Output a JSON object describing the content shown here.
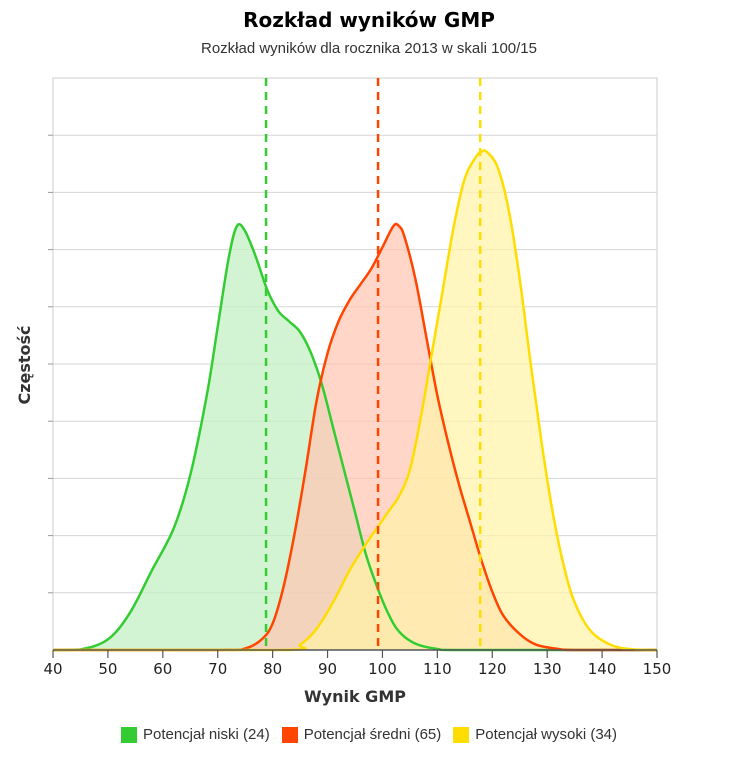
{
  "chart_data": {
    "type": "area",
    "title": "Rozkład wyników GMP",
    "subtitle": "Rozkład wyników dla rocznika 2013 w skali 100/15",
    "xlabel": "Wynik GMP",
    "ylabel": "Częstość",
    "xlim": [
      40,
      150
    ],
    "ylim": [
      0,
      1
    ],
    "x_ticks": [
      40,
      50,
      60,
      70,
      80,
      90,
      100,
      110,
      120,
      130,
      140,
      150
    ],
    "y_tick_labels_shown": false,
    "grid": true,
    "legend_placement": "bottom",
    "series": [
      {
        "name": "Potencjał niski (24)",
        "color": "#33cc33",
        "fill": "#c2f0c2",
        "mean": 78.8,
        "points": [
          [
            40,
            0
          ],
          [
            45,
            0.001
          ],
          [
            50,
            0.02
          ],
          [
            54,
            0.07
          ],
          [
            58,
            0.15
          ],
          [
            62,
            0.23
          ],
          [
            65,
            0.33
          ],
          [
            68,
            0.48
          ],
          [
            70,
            0.61
          ],
          [
            72,
            0.74
          ],
          [
            73.5,
            0.8
          ],
          [
            75,
            0.79
          ],
          [
            77,
            0.74
          ],
          [
            79,
            0.68
          ],
          [
            81,
            0.64
          ],
          [
            83,
            0.62
          ],
          [
            85,
            0.6
          ],
          [
            87,
            0.56
          ],
          [
            89,
            0.5
          ],
          [
            91,
            0.42
          ],
          [
            93,
            0.34
          ],
          [
            95,
            0.26
          ],
          [
            97,
            0.18
          ],
          [
            99,
            0.12
          ],
          [
            101,
            0.07
          ],
          [
            103,
            0.035
          ],
          [
            106,
            0.012
          ],
          [
            110,
            0.002
          ],
          [
            115,
            0
          ],
          [
            150,
            0
          ]
        ]
      },
      {
        "name": "Potencjał średni (65)",
        "color": "#ff4500",
        "fill": "#ffc6b3",
        "mean": 99.2,
        "points": [
          [
            40,
            0
          ],
          [
            70,
            0
          ],
          [
            75,
            0.003
          ],
          [
            78,
            0.02
          ],
          [
            80,
            0.05
          ],
          [
            82,
            0.12
          ],
          [
            84,
            0.22
          ],
          [
            86,
            0.34
          ],
          [
            88,
            0.47
          ],
          [
            90,
            0.56
          ],
          [
            92,
            0.62
          ],
          [
            94,
            0.66
          ],
          [
            96,
            0.69
          ],
          [
            98,
            0.72
          ],
          [
            100,
            0.76
          ],
          [
            102,
            0.8
          ],
          [
            103,
            0.8
          ],
          [
            104,
            0.78
          ],
          [
            106,
            0.7
          ],
          [
            108,
            0.59
          ],
          [
            110,
            0.48
          ],
          [
            112,
            0.39
          ],
          [
            114,
            0.31
          ],
          [
            116,
            0.24
          ],
          [
            118,
            0.17
          ],
          [
            120,
            0.11
          ],
          [
            122,
            0.065
          ],
          [
            125,
            0.03
          ],
          [
            128,
            0.01
          ],
          [
            132,
            0.002
          ],
          [
            135,
            0
          ],
          [
            150,
            0
          ]
        ]
      },
      {
        "name": "Potencjał wysoki (34)",
        "color": "#ffdd00",
        "fill": "#fff3a8",
        "mean": 117.8,
        "points": [
          [
            40,
            0
          ],
          [
            82,
            0
          ],
          [
            85,
            0.01
          ],
          [
            88,
            0.04
          ],
          [
            91,
            0.09
          ],
          [
            94,
            0.15
          ],
          [
            97,
            0.2
          ],
          [
            99,
            0.23
          ],
          [
            101,
            0.26
          ],
          [
            103,
            0.29
          ],
          [
            105,
            0.34
          ],
          [
            107,
            0.44
          ],
          [
            109,
            0.56
          ],
          [
            111,
            0.68
          ],
          [
            113,
            0.8
          ],
          [
            115,
            0.89
          ],
          [
            117,
            0.93
          ],
          [
            118,
            0.94
          ],
          [
            119,
            0.94
          ],
          [
            121,
            0.91
          ],
          [
            123,
            0.83
          ],
          [
            125,
            0.7
          ],
          [
            127,
            0.54
          ],
          [
            129,
            0.39
          ],
          [
            131,
            0.26
          ],
          [
            133,
            0.16
          ],
          [
            135,
            0.09
          ],
          [
            138,
            0.035
          ],
          [
            142,
            0.008
          ],
          [
            146,
            0.001
          ],
          [
            150,
            0
          ]
        ]
      }
    ]
  }
}
